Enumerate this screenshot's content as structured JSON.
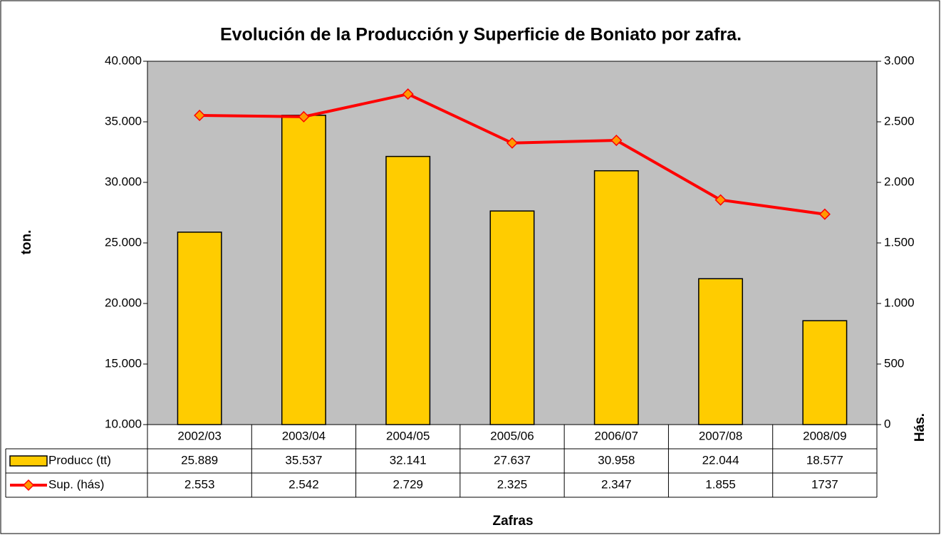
{
  "chart_data": {
    "type": "bar",
    "title": "Evolución de la Producción y Superficie de Boniato por zafra.",
    "y_label": "ton.",
    "y2_label": "Hás.",
    "x_label": "Zafras",
    "categories": [
      "2002/03",
      "2003/04",
      "2004/05",
      "2005/06",
      "2006/07",
      "2007/08",
      "2008/09"
    ],
    "series": [
      {
        "name": "Producc (tt)",
        "type": "bar",
        "color": "#FFCC00",
        "values": [
          25889,
          35537,
          32141,
          27637,
          30958,
          22044,
          18577
        ],
        "value_labels": [
          "25.889",
          "35.537",
          "32.141",
          "27.637",
          "30.958",
          "22.044",
          "18.577"
        ]
      },
      {
        "name": "Sup. (hás)",
        "type": "line",
        "axis": "y2",
        "color": "#FF0000",
        "values": [
          2553,
          2542,
          2729,
          2325,
          2347,
          1855,
          1737
        ],
        "value_labels": [
          "2.553",
          "2.542",
          "2.729",
          "2.325",
          "2.347",
          "1.855",
          "1737"
        ]
      }
    ],
    "ylim": [
      10000,
      40000
    ],
    "yticks": [
      {
        "value": 10000,
        "label": "10.000"
      },
      {
        "value": 15000,
        "label": "15.000"
      },
      {
        "value": 20000,
        "label": "20.000"
      },
      {
        "value": 25000,
        "label": "25.000"
      },
      {
        "value": 30000,
        "label": "30.000"
      },
      {
        "value": 35000,
        "label": "35.000"
      },
      {
        "value": 40000,
        "label": "40.000"
      }
    ],
    "y2lim": [
      0,
      3000
    ],
    "y2ticks": [
      0,
      500,
      {
        "value": 1000,
        "label": "1.000"
      },
      {
        "value": 1500,
        "label": "1.500"
      },
      {
        "value": 2000,
        "label": "2.000"
      },
      {
        "value": 2500,
        "label": "2.500"
      },
      {
        "value": 3000,
        "label": "3.000"
      }
    ],
    "grid": false
  }
}
